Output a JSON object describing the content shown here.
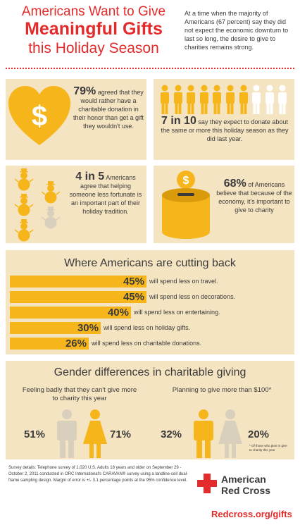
{
  "header": {
    "line1": "Americans Want to Give",
    "line2": "Meaningful Gifts",
    "line3": "this Holiday Season",
    "intro": "At a time when the majority of Americans (67 percent) say they did not expect the economic downturn to last so long, the desire to give to charities remains strong."
  },
  "stat1": {
    "value": "79%",
    "text": "agreed that they would rather have a charitable donation in their honor than get a gift they wouldn't use."
  },
  "stat2": {
    "value": "7 in 10",
    "text": "say they expect to donate about the same or more this holiday season as they did last year.",
    "filled_people": 7,
    "total_people": 10
  },
  "stat3": {
    "value": "4 in 5",
    "text": "Americans agree that helping someone less fortunate is an important part of their holiday tradition.",
    "filled_snowmen": 4,
    "total_snowmen": 5
  },
  "stat4": {
    "value": "68%",
    "text": "of Americans believe that because of the economy, it's important to give to charity"
  },
  "cutting": {
    "title": "Where Americans are cutting back",
    "items": [
      {
        "value": "45%",
        "label": "will spend less on travel.",
        "fraction": 0.45
      },
      {
        "value": "45%",
        "label": "will spend less on decorations.",
        "fraction": 0.45
      },
      {
        "value": "40%",
        "label": "will spend less on entertaining.",
        "fraction": 0.4
      },
      {
        "value": "30%",
        "label": "will spend less on holiday gifts.",
        "fraction": 0.3
      },
      {
        "value": "26%",
        "label": "will spend less on charitable donations.",
        "fraction": 0.26
      }
    ]
  },
  "gender": {
    "title": "Gender differences in charitable giving",
    "left_caption": "Feeling badly that they can't give more to charity this year",
    "left_male": "51%",
    "left_female": "71%",
    "right_caption": "Planning to give more than $100*",
    "right_male": "32%",
    "right_female": "20%",
    "footnote": "* Of those who plan to give to charity this year"
  },
  "footer": {
    "survey": "Survey details: Telephone survey of 1,020 U.S. Adults 18 years and older on September 29 - October 2, 2011 conducted in ORC International's CARAVAN® survey using a landline-cell dual-frame sampling design. Margin of error is +/- 3.1 percentage points at the 95% confidence level.",
    "brand_line1": "American",
    "brand_line2": "Red Cross",
    "url": "Redcross.org/gifts"
  },
  "colors": {
    "red": "#e32b2b",
    "gold": "#f6b61b",
    "panel": "#f5e4c1",
    "grey": "#d9cfbd",
    "text": "#3a3a3a"
  }
}
